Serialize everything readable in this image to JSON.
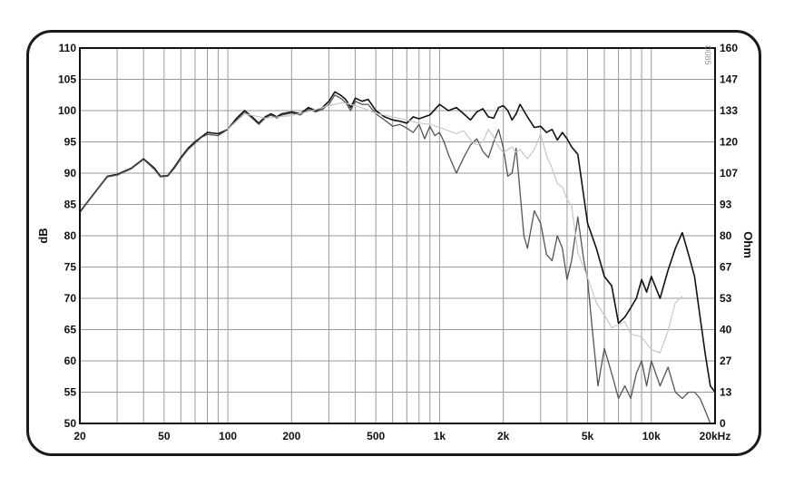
{
  "chart_data": {
    "type": "line",
    "xscale": "log",
    "xlim": [
      20,
      20000
    ],
    "ylim": [
      50,
      110
    ],
    "ylabel": "dB",
    "y2label": "Ohm",
    "y2lim": [
      0,
      160
    ],
    "grid": true,
    "legend": "none",
    "code_label": "D085",
    "x_tick_labels": [
      {
        "value": 20,
        "label": "20"
      },
      {
        "value": 50,
        "label": "50"
      },
      {
        "value": 100,
        "label": "100"
      },
      {
        "value": 200,
        "label": "200"
      },
      {
        "value": 500,
        "label": "500"
      },
      {
        "value": 1000,
        "label": "1k"
      },
      {
        "value": 2000,
        "label": "2k"
      },
      {
        "value": 5000,
        "label": "5k"
      },
      {
        "value": 10000,
        "label": "10k"
      },
      {
        "value": 20000,
        "label": "20kHz"
      }
    ],
    "y_tick_labels": [
      "50",
      "55",
      "60",
      "65",
      "70",
      "75",
      "80",
      "85",
      "90",
      "95",
      "100",
      "105",
      "110"
    ],
    "y2_tick_labels": [
      "0",
      "13",
      "27",
      "40",
      "53",
      "67",
      "80",
      "93",
      "107",
      "120",
      "133",
      "147",
      "160"
    ],
    "series": [
      {
        "color": "#111111",
        "width": 1.6,
        "x": [
          20,
          23,
          27,
          30,
          35,
          40,
          45,
          48,
          52,
          56,
          60,
          65,
          70,
          75,
          80,
          90,
          100,
          110,
          120,
          130,
          140,
          150,
          160,
          170,
          180,
          200,
          220,
          240,
          260,
          280,
          300,
          320,
          340,
          360,
          380,
          400,
          430,
          460,
          500,
          550,
          600,
          650,
          700,
          750,
          800,
          900,
          1000,
          1100,
          1200,
          1300,
          1400,
          1500,
          1600,
          1700,
          1800,
          1900,
          2000,
          2100,
          2200,
          2300,
          2400,
          2600,
          2800,
          3000,
          3200,
          3400,
          3600,
          3800,
          4000,
          4200,
          4500,
          5000,
          5500,
          6000,
          6500,
          7000,
          7500,
          8000,
          8500,
          9000,
          9500,
          10000,
          11000,
          12000,
          13000,
          14000,
          15000,
          16000,
          17000,
          18000,
          19000,
          20000
        ],
        "y": [
          83.8,
          86.5,
          89.5,
          89.8,
          90.8,
          92.3,
          90.8,
          89.5,
          89.6,
          91,
          92.5,
          94,
          95,
          95.8,
          96.5,
          96.3,
          97,
          98.8,
          100,
          99,
          98,
          99,
          99.5,
          99,
          99.5,
          99.8,
          99.5,
          100.5,
          100,
          100.5,
          101.5,
          103,
          102.5,
          101.8,
          100.5,
          102,
          101.5,
          101.8,
          100,
          99,
          98.5,
          98.3,
          98,
          99,
          98.7,
          99.3,
          101,
          100,
          100.5,
          99.5,
          98.5,
          99.8,
          100.3,
          99,
          98.8,
          100.5,
          100.8,
          100,
          98.5,
          99.5,
          101,
          99,
          97.3,
          97.5,
          96.5,
          97,
          95.3,
          96.5,
          95.5,
          94.2,
          93,
          82,
          78,
          73.5,
          72,
          66,
          67,
          68.5,
          70,
          73,
          71,
          73.5,
          70,
          74.5,
          78,
          80.5,
          77,
          73.5,
          67,
          61,
          56,
          55
        ]
      },
      {
        "color": "#555555",
        "width": 1.3,
        "x": [
          20,
          23,
          27,
          30,
          35,
          40,
          45,
          48,
          52,
          56,
          60,
          65,
          70,
          75,
          80,
          90,
          100,
          110,
          120,
          130,
          140,
          150,
          160,
          170,
          180,
          200,
          220,
          240,
          260,
          280,
          300,
          320,
          340,
          360,
          380,
          400,
          430,
          460,
          500,
          550,
          600,
          650,
          700,
          750,
          800,
          850,
          900,
          950,
          1000,
          1050,
          1100,
          1200,
          1300,
          1400,
          1500,
          1600,
          1700,
          1800,
          1900,
          2000,
          2100,
          2200,
          2300,
          2400,
          2500,
          2600,
          2800,
          3000,
          3200,
          3400,
          3600,
          3800,
          4000,
          4200,
          4500,
          4800,
          5000,
          5300,
          5600,
          6000,
          6500,
          7000,
          7500,
          8000,
          8500,
          9000,
          9500,
          10000,
          11000,
          12000,
          13000,
          14000,
          15000,
          16000,
          17000,
          18000,
          19000,
          20000
        ],
        "y": [
          83.7,
          86.4,
          89.4,
          89.7,
          90.7,
          92.2,
          90.6,
          89.4,
          89.5,
          90.8,
          92.3,
          93.8,
          94.8,
          95.7,
          96.2,
          96,
          97,
          98.5,
          99.8,
          98.8,
          97.8,
          98.8,
          99.3,
          98.8,
          99.3,
          99.6,
          99.3,
          100.2,
          99.8,
          100.2,
          101,
          102.5,
          102,
          101.3,
          100,
          101.5,
          101,
          101,
          99.5,
          98.5,
          97.5,
          97.8,
          97.2,
          96.5,
          97.8,
          95.5,
          97.5,
          96,
          96.5,
          95,
          93,
          90,
          92.5,
          94.5,
          95.5,
          93.5,
          92.5,
          95,
          97,
          94,
          89.5,
          90,
          94,
          87,
          80,
          78,
          84,
          82,
          77,
          76,
          80,
          78,
          73,
          76,
          83,
          76,
          73,
          64,
          56,
          62,
          58,
          54,
          56,
          54,
          58,
          60,
          56,
          60,
          56,
          59,
          55,
          54,
          55,
          55,
          54,
          52,
          50,
          50
        ]
      },
      {
        "color": "#c8c8c8",
        "width": 1.2,
        "x": [
          100,
          120,
          150,
          200,
          250,
          300,
          350,
          400,
          450,
          500,
          600,
          700,
          800,
          900,
          1000,
          1100,
          1200,
          1300,
          1400,
          1500,
          1600,
          1700,
          1800,
          1900,
          2000,
          2100,
          2200,
          2300,
          2400,
          2600,
          2800,
          3000,
          3200,
          3400,
          3600,
          3800,
          4000,
          4200,
          4500,
          5000,
          5500,
          6000,
          6500,
          7000,
          7500,
          8000,
          9000,
          10000,
          11000,
          12000,
          13000,
          14000
        ],
        "y": [
          97,
          99.5,
          98.8,
          99.2,
          100,
          100.8,
          101.3,
          100.8,
          100.2,
          99.6,
          99,
          98.5,
          98,
          97.8,
          97.3,
          96.8,
          96.3,
          96.8,
          95.3,
          94.5,
          95,
          97,
          95.8,
          94.2,
          93.3,
          93.8,
          94.2,
          93.3,
          93.8,
          92.3,
          93.8,
          96.3,
          92.8,
          90.8,
          88.3,
          87.8,
          85.8,
          84.8,
          77.3,
          73.3,
          69.3,
          67.3,
          65.3,
          65.8,
          66.3,
          64.3,
          63.8,
          61.8,
          61.3,
          64.8,
          69.3,
          70.3
        ]
      }
    ]
  }
}
